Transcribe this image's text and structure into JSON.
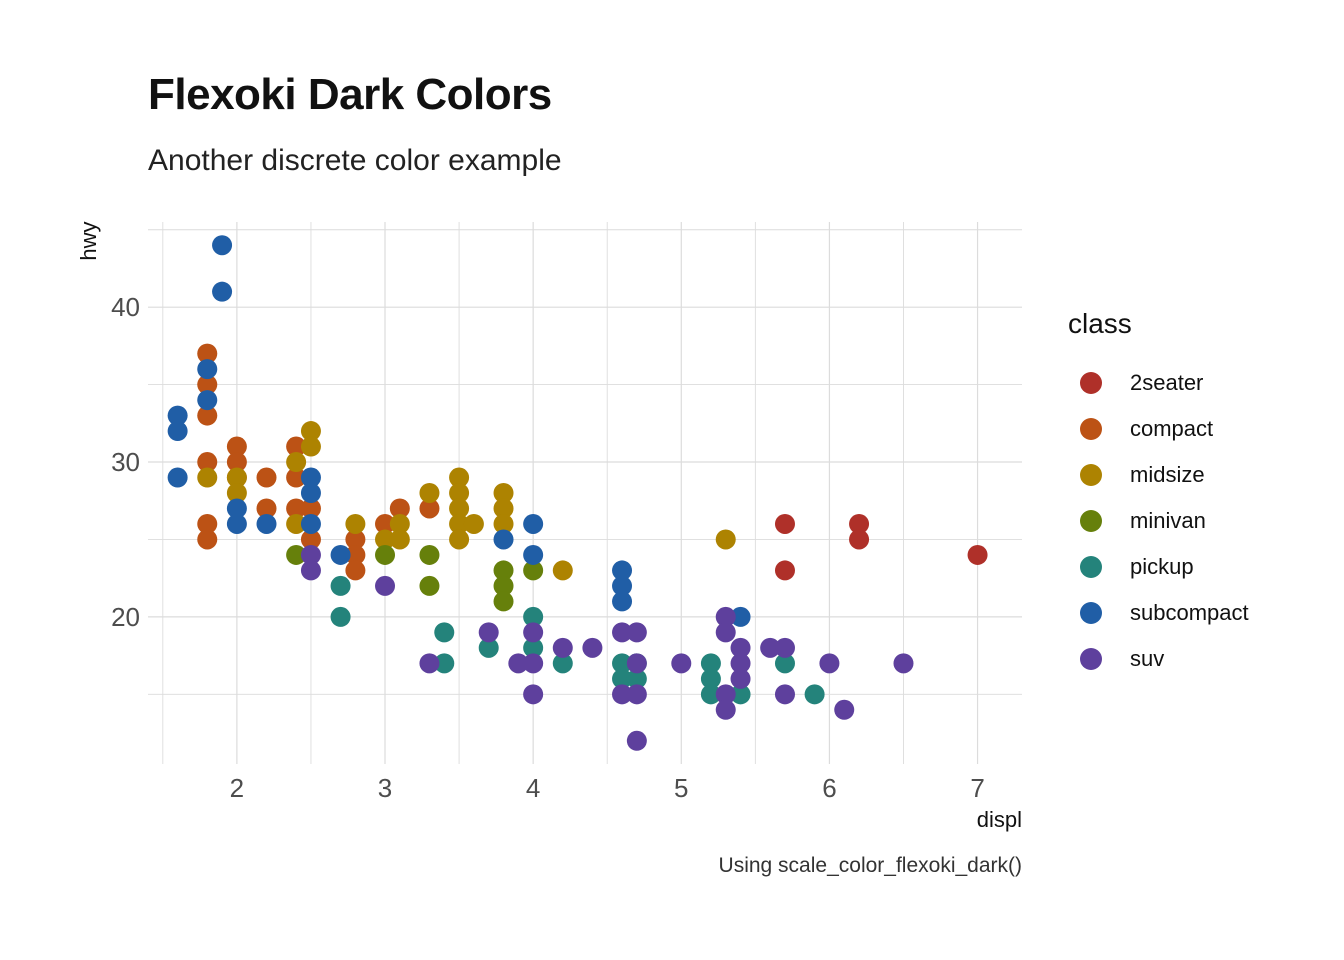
{
  "title": "Flexoki Dark Colors",
  "subtitle": "Another discrete color example",
  "caption": "Using scale_color_flexoki_dark()",
  "chart_data": {
    "type": "scatter",
    "xlabel": "displ",
    "ylabel": "hwy",
    "xlim": [
      1.4,
      7.3
    ],
    "ylim": [
      10.5,
      45.5
    ],
    "xticks": [
      2,
      3,
      4,
      5,
      6,
      7
    ],
    "yticks": [
      20,
      30,
      40
    ],
    "grid": true,
    "legend_title": "class",
    "legend_position": "right",
    "series": [
      {
        "name": "2seater",
        "color": "#AF3029",
        "points": [
          [
            5.7,
            26
          ],
          [
            5.7,
            23
          ],
          [
            6.2,
            26
          ],
          [
            6.2,
            25
          ],
          [
            7.0,
            24
          ]
        ]
      },
      {
        "name": "compact",
        "color": "#BC5215",
        "points": [
          [
            1.8,
            37
          ],
          [
            1.8,
            35
          ],
          [
            1.8,
            33
          ],
          [
            1.8,
            30
          ],
          [
            1.8,
            26
          ],
          [
            1.8,
            25
          ],
          [
            2.0,
            31
          ],
          [
            2.0,
            30
          ],
          [
            2.0,
            29
          ],
          [
            2.2,
            29
          ],
          [
            2.2,
            27
          ],
          [
            2.4,
            31
          ],
          [
            2.4,
            29
          ],
          [
            2.4,
            27
          ],
          [
            2.5,
            27
          ],
          [
            2.5,
            25
          ],
          [
            2.8,
            25
          ],
          [
            2.8,
            24
          ],
          [
            2.8,
            23
          ],
          [
            3.0,
            26
          ],
          [
            3.1,
            27
          ],
          [
            3.3,
            27
          ]
        ]
      },
      {
        "name": "midsize",
        "color": "#AD8301",
        "points": [
          [
            1.8,
            29
          ],
          [
            2.0,
            29
          ],
          [
            2.0,
            28
          ],
          [
            2.4,
            30
          ],
          [
            2.4,
            26
          ],
          [
            2.5,
            32
          ],
          [
            2.5,
            31
          ],
          [
            2.8,
            26
          ],
          [
            3.0,
            25
          ],
          [
            3.1,
            26
          ],
          [
            3.1,
            25
          ],
          [
            3.3,
            28
          ],
          [
            3.5,
            29
          ],
          [
            3.5,
            28
          ],
          [
            3.5,
            27
          ],
          [
            3.5,
            26
          ],
          [
            3.5,
            25
          ],
          [
            3.6,
            26
          ],
          [
            3.8,
            28
          ],
          [
            3.8,
            27
          ],
          [
            3.8,
            26
          ],
          [
            4.2,
            23
          ],
          [
            5.3,
            25
          ]
        ]
      },
      {
        "name": "minivan",
        "color": "#66800B",
        "points": [
          [
            2.4,
            24
          ],
          [
            3.0,
            24
          ],
          [
            3.3,
            24
          ],
          [
            3.3,
            22
          ],
          [
            3.8,
            23
          ],
          [
            3.8,
            22
          ],
          [
            3.8,
            21
          ],
          [
            4.0,
            23
          ]
        ]
      },
      {
        "name": "pickup",
        "color": "#24837B",
        "points": [
          [
            2.7,
            22
          ],
          [
            2.7,
            20
          ],
          [
            3.4,
            19
          ],
          [
            3.4,
            17
          ],
          [
            3.7,
            18
          ],
          [
            4.0,
            20
          ],
          [
            4.0,
            18
          ],
          [
            4.2,
            17
          ],
          [
            4.6,
            17
          ],
          [
            4.6,
            16
          ],
          [
            4.7,
            17
          ],
          [
            4.7,
            16
          ],
          [
            5.2,
            17
          ],
          [
            5.2,
            16
          ],
          [
            5.2,
            15
          ],
          [
            5.4,
            15
          ],
          [
            5.7,
            17
          ],
          [
            5.9,
            15
          ]
        ]
      },
      {
        "name": "subcompact",
        "color": "#205EA6",
        "points": [
          [
            1.6,
            33
          ],
          [
            1.6,
            32
          ],
          [
            1.6,
            29
          ],
          [
            1.8,
            36
          ],
          [
            1.8,
            34
          ],
          [
            1.9,
            44
          ],
          [
            1.9,
            41
          ],
          [
            2.0,
            27
          ],
          [
            2.0,
            26
          ],
          [
            2.2,
            26
          ],
          [
            2.5,
            29
          ],
          [
            2.5,
            28
          ],
          [
            2.5,
            26
          ],
          [
            2.7,
            24
          ],
          [
            3.8,
            25
          ],
          [
            4.0,
            26
          ],
          [
            4.0,
            24
          ],
          [
            4.6,
            23
          ],
          [
            4.6,
            22
          ],
          [
            4.6,
            21
          ],
          [
            5.4,
            20
          ]
        ]
      },
      {
        "name": "suv",
        "color": "#5E409D",
        "points": [
          [
            2.5,
            24
          ],
          [
            2.5,
            23
          ],
          [
            3.0,
            22
          ],
          [
            3.3,
            17
          ],
          [
            3.7,
            19
          ],
          [
            3.9,
            17
          ],
          [
            4.0,
            19
          ],
          [
            4.0,
            17
          ],
          [
            4.0,
            15
          ],
          [
            4.2,
            18
          ],
          [
            4.4,
            18
          ],
          [
            4.6,
            19
          ],
          [
            4.6,
            15
          ],
          [
            4.7,
            19
          ],
          [
            4.7,
            17
          ],
          [
            4.7,
            15
          ],
          [
            4.7,
            12
          ],
          [
            5.0,
            17
          ],
          [
            5.3,
            20
          ],
          [
            5.3,
            19
          ],
          [
            5.3,
            15
          ],
          [
            5.3,
            14
          ],
          [
            5.4,
            18
          ],
          [
            5.4,
            17
          ],
          [
            5.4,
            16
          ],
          [
            5.6,
            18
          ],
          [
            5.7,
            18
          ],
          [
            5.7,
            15
          ],
          [
            6.0,
            17
          ],
          [
            6.1,
            14
          ],
          [
            6.5,
            17
          ]
        ]
      }
    ]
  }
}
